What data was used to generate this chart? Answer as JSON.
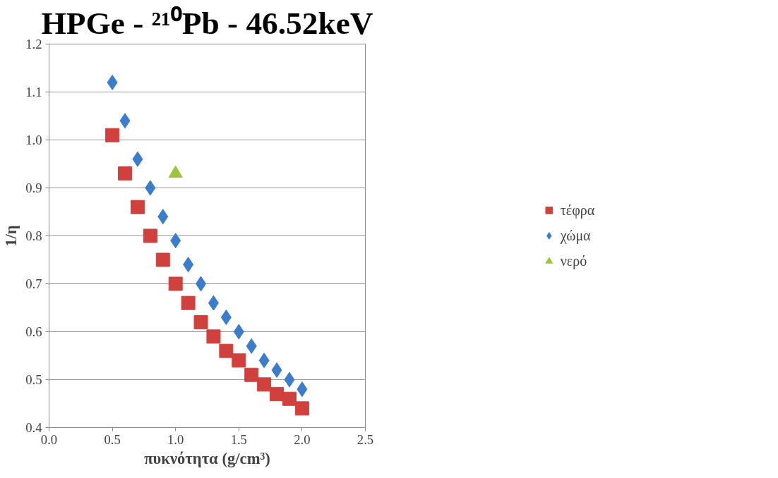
{
  "chart_data": {
    "type": "scatter",
    "title": "HPGe - ²¹⁰Pb - 46.52keV",
    "xlabel": "πυκνότητα (g/cm³)",
    "ylabel": "1/η",
    "x": [
      0.5,
      0.6,
      0.7,
      0.8,
      0.9,
      1.0,
      1.1,
      1.2,
      1.3,
      1.4,
      1.5,
      1.6,
      1.7,
      1.8,
      1.9,
      2.0
    ],
    "series": [
      {
        "name": "τέφρα",
        "color": "#d0413d",
        "marker": "square",
        "values": [
          1.01,
          0.93,
          0.86,
          0.8,
          0.75,
          0.7,
          0.66,
          0.62,
          0.59,
          0.56,
          0.54,
          0.51,
          0.49,
          0.47,
          0.46,
          0.44
        ]
      },
      {
        "name": "χώμα",
        "color": "#3b7dcb",
        "marker": "diamond",
        "values": [
          1.12,
          1.04,
          0.96,
          0.9,
          0.84,
          0.79,
          0.74,
          0.7,
          0.66,
          0.63,
          0.6,
          0.57,
          0.54,
          0.52,
          0.5,
          0.48
        ]
      },
      {
        "name": "νερό",
        "color": "#9bc63b",
        "marker": "triangle",
        "x": [
          1.0
        ],
        "values": [
          0.93
        ]
      }
    ],
    "xlim": [
      0,
      2.5
    ],
    "xticks": [
      {
        "value": 0,
        "label": "0.0"
      },
      0.5,
      {
        "value": 1,
        "label": "1.0"
      },
      1.5,
      {
        "value": 2,
        "label": "2.0"
      },
      2.5
    ],
    "ylim": [
      0.4,
      1.2
    ],
    "yticks": [
      0.4,
      0.5,
      0.6,
      0.7,
      0.8,
      0.9,
      {
        "value": 1,
        "label": "1.0"
      },
      1.1,
      1.2
    ],
    "grid": "y",
    "legend": "right"
  }
}
